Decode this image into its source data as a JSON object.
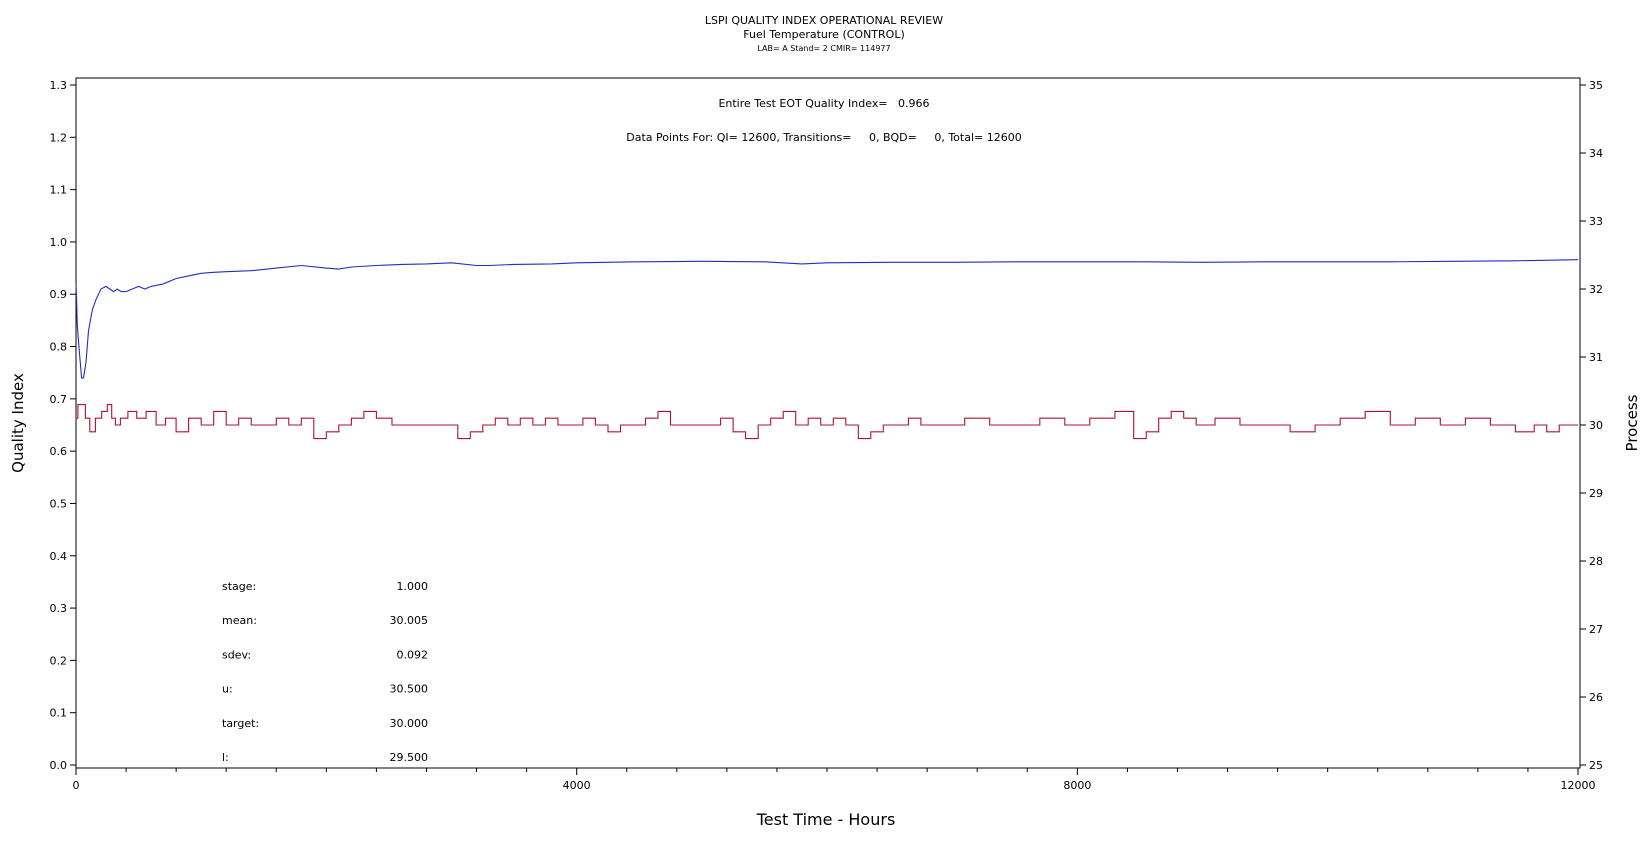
{
  "chart_data": {
    "type": "line",
    "title": "LSPI QUALITY INDEX OPERATIONAL REVIEW",
    "subtitle": "Fuel Temperature (CONTROL)",
    "subtitle2": "LAB= A Stand= 2 CMIR= 114977",
    "xlabel": "Test Time - Hours",
    "ylabel_left": "Quality Index",
    "ylabel_right": "Process",
    "xlim": [
      0,
      12000
    ],
    "ylim_left": [
      0.0,
      1.3
    ],
    "ylim_right": [
      25,
      35
    ],
    "x_ticks": [
      0,
      4000,
      8000,
      12000
    ],
    "y_ticks_left": [
      "0.0",
      "0.1",
      "0.2",
      "0.3",
      "0.4",
      "0.5",
      "0.6",
      "0.7",
      "0.8",
      "0.9",
      "1.0",
      "1.1",
      "1.2",
      "1.3"
    ],
    "y_ticks_right": [
      "25",
      "26",
      "27",
      "28",
      "29",
      "30",
      "31",
      "32",
      "33",
      "34",
      "35"
    ],
    "annotation_qi": "Entire Test EOT Quality Index=   0.966",
    "annotation_points": "Data Points For: QI= 12600, Transitions=     0, BQD=     0, Total= 12600",
    "stats": [
      {
        "label": "stage:",
        "value": "1.000"
      },
      {
        "label": "mean:",
        "value": "30.005"
      },
      {
        "label": "sdev:",
        "value": "0.092"
      },
      {
        "label": "u:",
        "value": "30.500"
      },
      {
        "label": "target:",
        "value": "30.000"
      },
      {
        "label": "l:",
        "value": "29.500"
      }
    ],
    "series": [
      {
        "axis": "left",
        "color": "#1f2fbf",
        "x": [
          0,
          5,
          10,
          20,
          30,
          45,
          60,
          80,
          100,
          130,
          160,
          200,
          240,
          270,
          300,
          330,
          360,
          400,
          450,
          500,
          550,
          600,
          700,
          800,
          900,
          1000,
          1100,
          1200,
          1400,
          1600,
          1800,
          2000,
          2100,
          2200,
          2400,
          2600,
          2800,
          3000,
          3200,
          3300,
          3500,
          3800,
          4000,
          4500,
          5000,
          5500,
          5800,
          6000,
          6500,
          7000,
          7500,
          8000,
          8500,
          9000,
          9500,
          10000,
          10500,
          11000,
          11500,
          12000
        ],
        "y": [
          0.92,
          0.89,
          0.84,
          0.81,
          0.78,
          0.74,
          0.74,
          0.77,
          0.83,
          0.87,
          0.89,
          0.91,
          0.915,
          0.91,
          0.905,
          0.91,
          0.905,
          0.905,
          0.91,
          0.915,
          0.91,
          0.915,
          0.92,
          0.93,
          0.935,
          0.94,
          0.942,
          0.943,
          0.945,
          0.95,
          0.955,
          0.95,
          0.948,
          0.952,
          0.955,
          0.957,
          0.958,
          0.96,
          0.955,
          0.955,
          0.957,
          0.958,
          0.96,
          0.962,
          0.963,
          0.962,
          0.958,
          0.96,
          0.961,
          0.961,
          0.962,
          0.962,
          0.962,
          0.961,
          0.962,
          0.962,
          0.962,
          0.963,
          0.964,
          0.966
        ]
      },
      {
        "axis": "right",
        "color": "#b01030",
        "x": [
          0,
          30,
          60,
          90,
          130,
          180,
          230,
          270,
          300,
          330,
          380,
          450,
          520,
          600,
          680,
          750,
          850,
          950,
          1050,
          1150,
          1250,
          1350,
          1450,
          1550,
          1650,
          1750,
          1850,
          1950,
          2050,
          2150,
          2250,
          2350,
          2450,
          2600,
          2800,
          3000,
          3100,
          3200,
          3300,
          3400,
          3500,
          3600,
          3700,
          3800,
          3900,
          4000,
          4100,
          4200,
          4300,
          4400,
          4500,
          4600,
          4700,
          4800,
          4900,
          5000,
          5100,
          5200,
          5300,
          5400,
          5500,
          5600,
          5700,
          5800,
          5900,
          6000,
          6100,
          6200,
          6300,
          6400,
          6500,
          6600,
          6700,
          6800,
          6900,
          7000,
          7200,
          7400,
          7600,
          7800,
          8000,
          8200,
          8400,
          8500,
          8600,
          8700,
          8800,
          8900,
          9000,
          9200,
          9400,
          9600,
          9800,
          10000,
          10200,
          10400,
          10600,
          10800,
          11000,
          11200,
          11400,
          11600,
          11700,
          11800,
          11900,
          12000
        ],
        "y": [
          30.1,
          30.3,
          30.3,
          30.1,
          29.9,
          30.1,
          30.2,
          30.3,
          30.1,
          30.0,
          30.1,
          30.2,
          30.1,
          30.2,
          30.0,
          30.1,
          29.9,
          30.1,
          30.0,
          30.2,
          30.0,
          30.1,
          30.0,
          30.0,
          30.1,
          30.0,
          30.1,
          29.8,
          29.9,
          30.0,
          30.1,
          30.2,
          30.1,
          30.0,
          30.0,
          30.0,
          29.8,
          29.9,
          30.0,
          30.1,
          30.0,
          30.1,
          30.0,
          30.1,
          30.0,
          30.0,
          30.1,
          30.0,
          29.9,
          30.0,
          30.0,
          30.1,
          30.2,
          30.0,
          30.0,
          30.0,
          30.0,
          30.1,
          29.9,
          29.8,
          30.0,
          30.1,
          30.2,
          30.0,
          30.1,
          30.0,
          30.1,
          30.0,
          29.8,
          29.9,
          30.0,
          30.0,
          30.1,
          30.0,
          30.0,
          30.0,
          30.1,
          30.0,
          30.0,
          30.1,
          30.0,
          30.1,
          30.2,
          29.8,
          29.9,
          30.1,
          30.2,
          30.1,
          30.0,
          30.1,
          30.0,
          30.0,
          29.9,
          30.0,
          30.1,
          30.2,
          30.0,
          30.1,
          30.0,
          30.1,
          30.0,
          29.9,
          30.0,
          29.9,
          30.0,
          30.0
        ]
      }
    ]
  }
}
